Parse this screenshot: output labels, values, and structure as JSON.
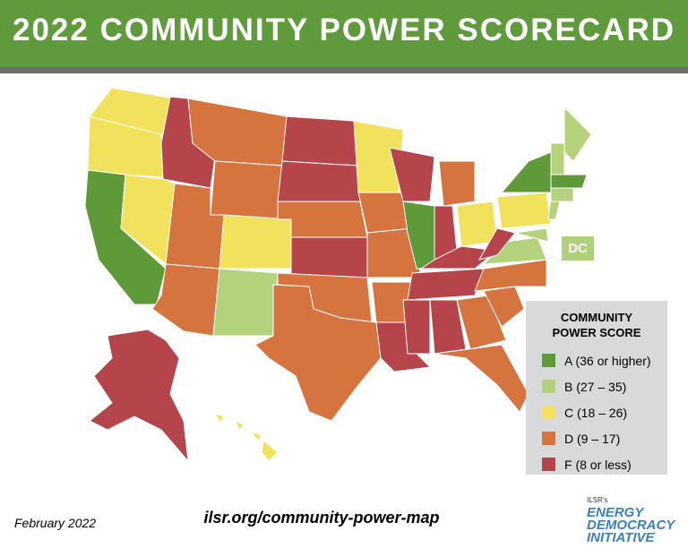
{
  "header": {
    "title": "2022 COMMUNITY POWER SCORECARD"
  },
  "map": {
    "label": "DC"
  },
  "legend": {
    "title": "COMMUNITY POWER SCORE",
    "items": [
      {
        "label": "A (36 or higher)",
        "color": "#5f9a38"
      },
      {
        "label": "B (27 – 35)",
        "color": "#b3d27b"
      },
      {
        "label": "C (18 – 26)",
        "color": "#f2e15c"
      },
      {
        "label": "D (9 – 17)",
        "color": "#d6743f"
      },
      {
        "label": "F (8 or less)",
        "color": "#b5454b"
      }
    ]
  },
  "footer": {
    "date": "February 2022",
    "url": "ilsr.org/community-power-map",
    "logo": {
      "org": "ILSR's",
      "name": [
        "ENERGY",
        "DEMOCRACY",
        "INITIATIVE"
      ]
    }
  }
}
